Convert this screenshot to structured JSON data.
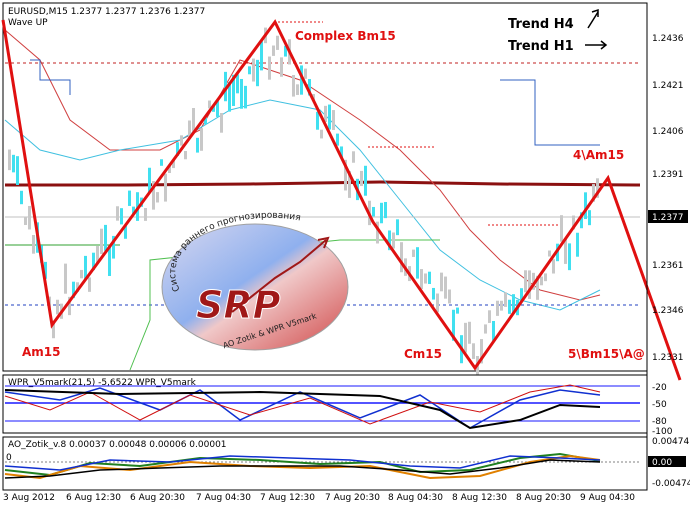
{
  "header": {
    "symbol_line": "EURUSD,M15  1.2377 1.2377 1.2376 1.2377",
    "indicator": "Wave UP",
    "trend_h4": "Trend H4",
    "trend_h1": "Trend H1"
  },
  "wave_labels": {
    "am15": "Am15",
    "complex": "Complex Bm15",
    "cm15": "Cm15",
    "four": "4\\Am15",
    "five": "5\\Bm15\\A@"
  },
  "logo": {
    "letters": "SRP",
    "arc_text": "Система раннего прогнозирования",
    "author": "AO Zotik & WPR V5mark"
  },
  "price_axis": {
    "ticks": [
      "1.2436",
      "1.2421",
      "1.2406",
      "1.2391",
      "1.2376",
      "1.2361",
      "1.2346",
      "1.2331"
    ],
    "current": "1.2377"
  },
  "wpr_panel": {
    "title": "WPR_V5mark(21,5)  -5,6522  WPR_V5mark",
    "levels": [
      "-20",
      "-50",
      "-80",
      "-100"
    ]
  },
  "ao_panel": {
    "title": "AO_Zotik_v.8  0.00037  0.00048  0.00006  0.00001",
    "levels": [
      "0.00474",
      "0.00",
      "-0.00474"
    ],
    "zero_label": "0"
  },
  "time_axis": [
    "3 Aug 2012",
    "6 Aug 12:30",
    "6 Aug 20:30",
    "7 Aug 04:30",
    "7 Aug 12:30",
    "7 Aug 20:30",
    "8 Aug 04:30",
    "8 Aug 12:30",
    "8 Aug 20:30",
    "9 Aug 04:30"
  ],
  "colors": {
    "wave_line": "#e01010",
    "candles": "#40e0f0",
    "moving_avg": "#8b1010",
    "panel_grid": "#1a1aff"
  }
}
